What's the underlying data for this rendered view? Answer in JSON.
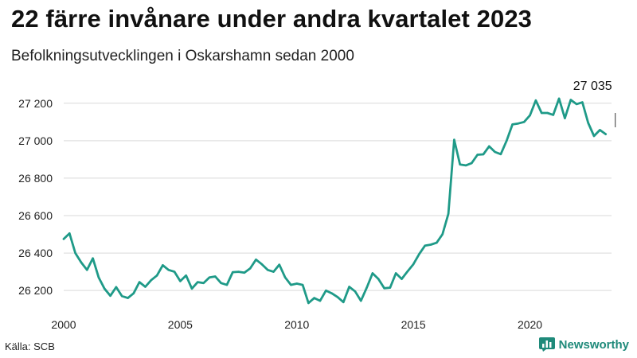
{
  "title": "22 färre invånare under andra kvartalet 2023",
  "subtitle": "Befolkningsutvecklingen i Oskarshamn sedan 2000",
  "source": "Källa: SCB",
  "brand": {
    "name": "Newsworthy",
    "icon": "newsworthy-chart-icon",
    "color": "#1f8a7a"
  },
  "chart_data": {
    "type": "line",
    "title": "22 färre invånare under andra kvartalet 2023",
    "subtitle": "Befolkningsutvecklingen i Oskarshamn sedan 2000",
    "xlabel": "",
    "ylabel": "",
    "xlim": [
      2000,
      2023.5
    ],
    "ylim": [
      26120,
      27250
    ],
    "grid": true,
    "line_color": "#1f9a88",
    "x_ticks": [
      2000,
      2005,
      2010,
      2015,
      2020
    ],
    "x_tick_labels": [
      "2000",
      "2005",
      "2010",
      "2015",
      "2020"
    ],
    "y_ticks": [
      26200,
      26400,
      26600,
      26800,
      27000,
      27200
    ],
    "y_tick_labels": [
      "26 200",
      "26 400",
      "26 600",
      "26 800",
      "27 000",
      "27 200"
    ],
    "annotation": {
      "text": "27 035",
      "x": 2023.25,
      "y": 27035
    },
    "series": [
      {
        "x": [
          2000.0,
          2000.25,
          2000.5,
          2000.75,
          2001.0,
          2001.25,
          2001.5,
          2001.75,
          2002.0,
          2002.25,
          2002.5,
          2002.75,
          2003.0,
          2003.25,
          2003.5,
          2003.75,
          2004.0,
          2004.25,
          2004.5,
          2004.75,
          2005.0,
          2005.25,
          2005.5,
          2005.75,
          2006.0,
          2006.25,
          2006.5,
          2006.75,
          2007.0,
          2007.25,
          2007.5,
          2007.75,
          2008.0,
          2008.25,
          2008.5,
          2008.75,
          2009.0,
          2009.25,
          2009.5,
          2009.75,
          2010.0,
          2010.25,
          2010.5,
          2010.75,
          2011.0,
          2011.25,
          2011.5,
          2011.75,
          2012.0,
          2012.25,
          2012.5,
          2012.75,
          2013.0,
          2013.25,
          2013.5,
          2013.75,
          2014.0,
          2014.25,
          2014.5,
          2014.75,
          2015.0,
          2015.25,
          2015.5,
          2015.75,
          2016.0,
          2016.25,
          2016.5,
          2016.75,
          2017.0,
          2017.25,
          2017.5,
          2017.75,
          2018.0,
          2018.25,
          2018.5,
          2018.75,
          2019.0,
          2019.25,
          2019.5,
          2019.75,
          2020.0,
          2020.25,
          2020.5,
          2020.75,
          2021.0,
          2021.25,
          2021.5,
          2021.75,
          2022.0,
          2022.25,
          2022.5,
          2022.75,
          2023.0,
          2023.25
        ],
        "values": [
          26475,
          26505,
          26400,
          26350,
          26310,
          26372,
          26270,
          26210,
          26172,
          26218,
          26170,
          26160,
          26185,
          26245,
          26220,
          26255,
          26280,
          26335,
          26310,
          26300,
          26250,
          26280,
          26210,
          26245,
          26240,
          26270,
          26275,
          26240,
          26230,
          26298,
          26300,
          26295,
          26318,
          26365,
          26340,
          26310,
          26300,
          26338,
          26270,
          26230,
          26237,
          26230,
          26133,
          26160,
          26145,
          26200,
          26185,
          26165,
          26138,
          26220,
          26195,
          26145,
          26215,
          26292,
          26262,
          26212,
          26215,
          26292,
          26262,
          26302,
          26340,
          26395,
          26440,
          26445,
          26455,
          26500,
          26610,
          27005,
          26873,
          26868,
          26880,
          26925,
          26927,
          26970,
          26940,
          26928,
          27000,
          27087,
          27092,
          27100,
          27135,
          27215,
          27148,
          27148,
          27138,
          27225,
          27120,
          27218,
          27195,
          27205,
          27095,
          27025,
          27057,
          27035
        ]
      }
    ]
  }
}
